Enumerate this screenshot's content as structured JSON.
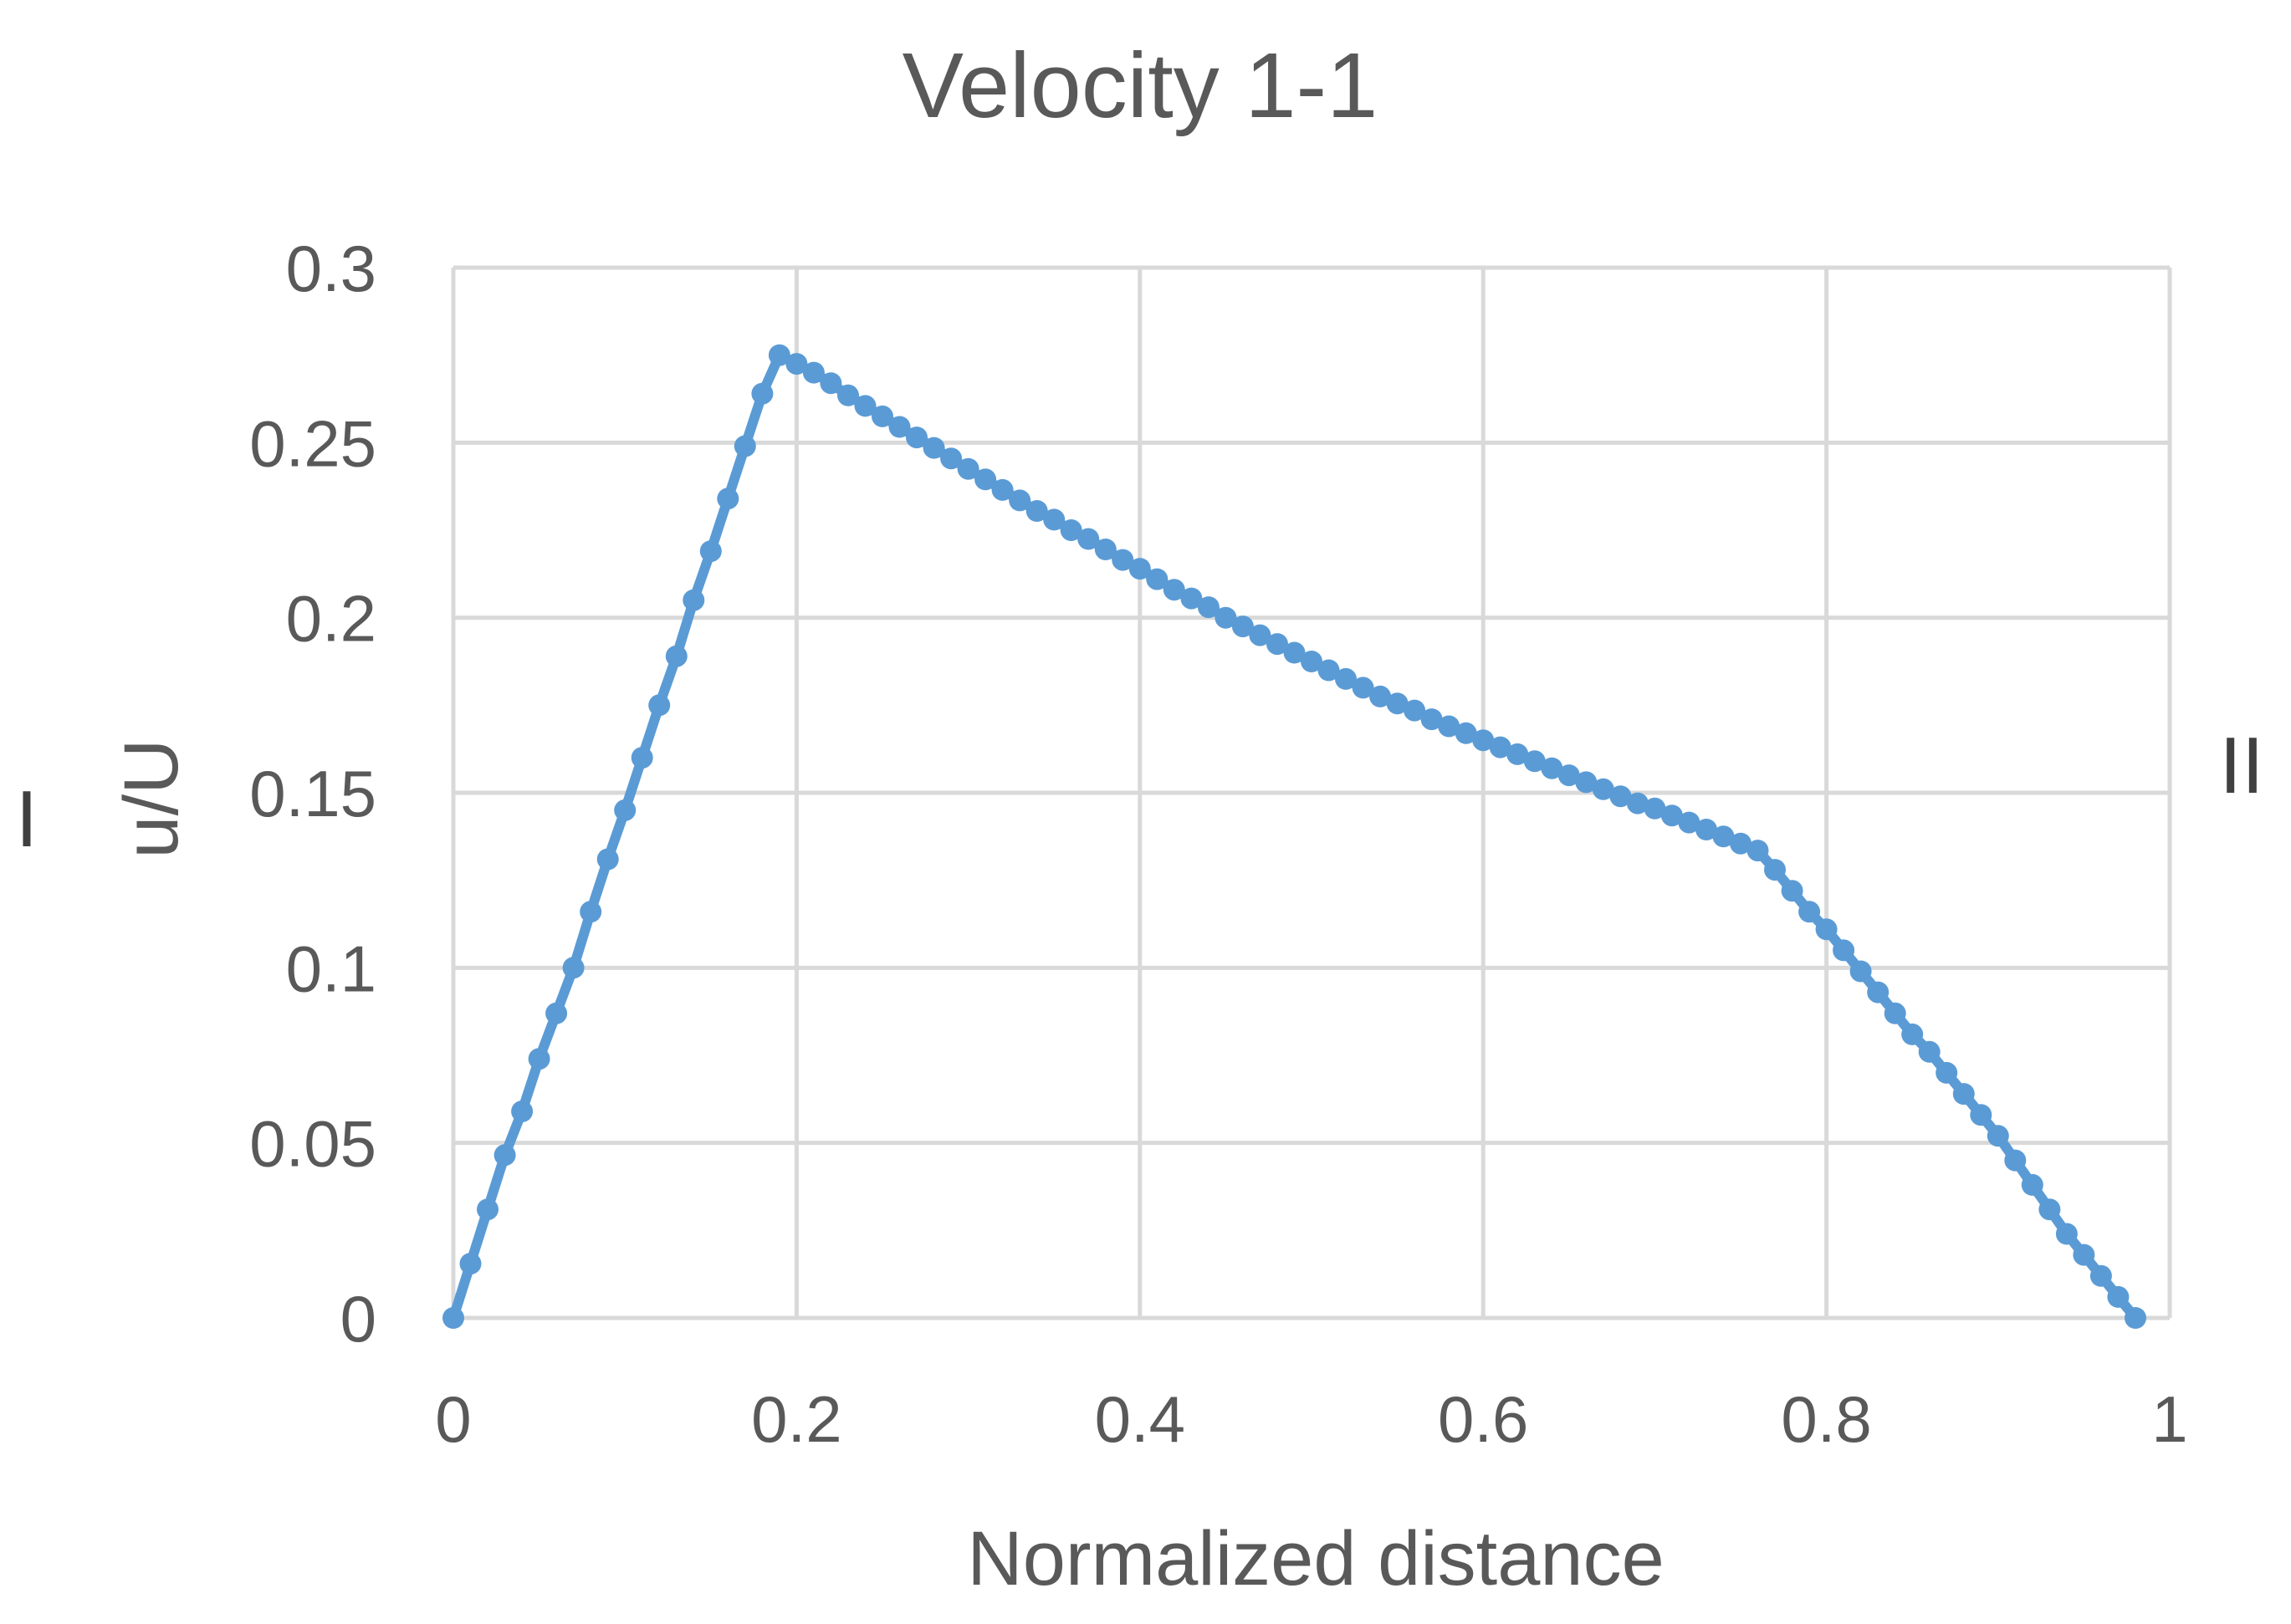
{
  "chart_data": {
    "type": "line",
    "title": "Velocity 1-1",
    "xlabel": "Normalized distance",
    "ylabel": "u/U",
    "left_label": "I",
    "right_label": "II",
    "xlim": [
      0,
      1
    ],
    "ylim": [
      0,
      0.3
    ],
    "xticks": [
      {
        "value": 0,
        "label": "0"
      },
      {
        "value": 0.2,
        "label": "0.2"
      },
      {
        "value": 0.4,
        "label": "0.4"
      },
      {
        "value": 0.6,
        "label": "0.6"
      },
      {
        "value": 0.8,
        "label": "0.8"
      },
      {
        "value": 1,
        "label": "1"
      }
    ],
    "yticks": [
      {
        "value": 0,
        "label": "0"
      },
      {
        "value": 0.05,
        "label": "0.05"
      },
      {
        "value": 0.1,
        "label": "0.1"
      },
      {
        "value": 0.15,
        "label": "0.15"
      },
      {
        "value": 0.2,
        "label": "0.2"
      },
      {
        "value": 0.25,
        "label": "0.25"
      },
      {
        "value": 0.3,
        "label": "0.3"
      }
    ],
    "grid": true,
    "color": "#5b9bd5",
    "series": [
      {
        "name": "Velocity 1-1",
        "points": [
          [
            0.0,
            0.0
          ],
          [
            0.01,
            0.0155
          ],
          [
            0.02,
            0.031
          ],
          [
            0.03,
            0.0465
          ],
          [
            0.04,
            0.059
          ],
          [
            0.05,
            0.074
          ],
          [
            0.06,
            0.087
          ],
          [
            0.07,
            0.1
          ],
          [
            0.08,
            0.116
          ],
          [
            0.09,
            0.131
          ],
          [
            0.1,
            0.145
          ],
          [
            0.11,
            0.16
          ],
          [
            0.12,
            0.175
          ],
          [
            0.13,
            0.189
          ],
          [
            0.14,
            0.205
          ],
          [
            0.15,
            0.219
          ],
          [
            0.16,
            0.234
          ],
          [
            0.17,
            0.249
          ],
          [
            0.18,
            0.264
          ],
          [
            0.19,
            0.275
          ],
          [
            0.2,
            0.2725
          ],
          [
            0.21,
            0.27
          ],
          [
            0.22,
            0.267
          ],
          [
            0.23,
            0.2635
          ],
          [
            0.24,
            0.2605
          ],
          [
            0.25,
            0.2575
          ],
          [
            0.26,
            0.2545
          ],
          [
            0.27,
            0.2515
          ],
          [
            0.28,
            0.2485
          ],
          [
            0.29,
            0.2455
          ],
          [
            0.3,
            0.2425
          ],
          [
            0.31,
            0.2395
          ],
          [
            0.32,
            0.2365
          ],
          [
            0.33,
            0.2335
          ],
          [
            0.34,
            0.2305
          ],
          [
            0.35,
            0.228
          ],
          [
            0.36,
            0.225
          ],
          [
            0.37,
            0.2225
          ],
          [
            0.38,
            0.2195
          ],
          [
            0.39,
            0.2165
          ],
          [
            0.4,
            0.214
          ],
          [
            0.41,
            0.211
          ],
          [
            0.42,
            0.208
          ],
          [
            0.43,
            0.2055
          ],
          [
            0.44,
            0.203
          ],
          [
            0.45,
            0.2
          ],
          [
            0.46,
            0.1975
          ],
          [
            0.47,
            0.195
          ],
          [
            0.48,
            0.1925
          ],
          [
            0.49,
            0.19
          ],
          [
            0.5,
            0.1875
          ],
          [
            0.51,
            0.185
          ],
          [
            0.52,
            0.1825
          ],
          [
            0.53,
            0.18
          ],
          [
            0.54,
            0.1775
          ],
          [
            0.55,
            0.1755
          ],
          [
            0.56,
            0.1735
          ],
          [
            0.57,
            0.171
          ],
          [
            0.58,
            0.169
          ],
          [
            0.59,
            0.167
          ],
          [
            0.6,
            0.165
          ],
          [
            0.61,
            0.163
          ],
          [
            0.62,
            0.161
          ],
          [
            0.63,
            0.159
          ],
          [
            0.64,
            0.157
          ],
          [
            0.65,
            0.155
          ],
          [
            0.66,
            0.153
          ],
          [
            0.67,
            0.151
          ],
          [
            0.68,
            0.149
          ],
          [
            0.69,
            0.147
          ],
          [
            0.7,
            0.1455
          ],
          [
            0.71,
            0.1435
          ],
          [
            0.72,
            0.1415
          ],
          [
            0.73,
            0.1395
          ],
          [
            0.74,
            0.1375
          ],
          [
            0.75,
            0.1355
          ],
          [
            0.76,
            0.1335
          ],
          [
            0.77,
            0.128
          ],
          [
            0.78,
            0.122
          ],
          [
            0.79,
            0.116
          ],
          [
            0.8,
            0.111
          ],
          [
            0.81,
            0.105
          ],
          [
            0.82,
            0.099
          ],
          [
            0.83,
            0.093
          ],
          [
            0.84,
            0.087
          ],
          [
            0.85,
            0.081
          ],
          [
            0.86,
            0.076
          ],
          [
            0.87,
            0.07
          ],
          [
            0.88,
            0.064
          ],
          [
            0.89,
            0.058
          ],
          [
            0.9,
            0.052
          ],
          [
            0.91,
            0.045
          ],
          [
            0.92,
            0.038
          ],
          [
            0.93,
            0.031
          ],
          [
            0.94,
            0.024
          ],
          [
            0.95,
            0.018
          ],
          [
            0.96,
            0.012
          ],
          [
            0.97,
            0.006
          ],
          [
            0.98,
            0.0
          ]
        ]
      }
    ]
  }
}
